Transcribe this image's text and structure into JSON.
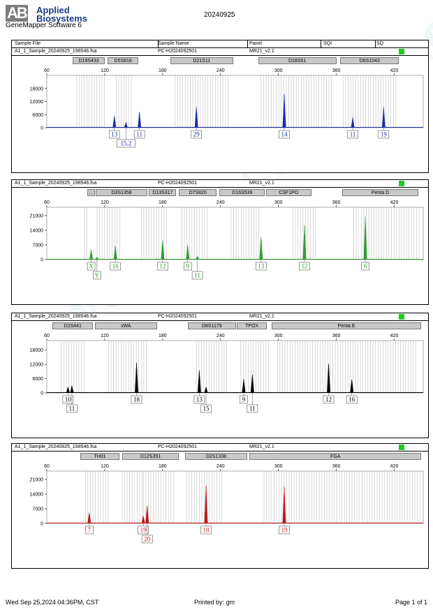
{
  "header": {
    "logo_line1": "Applied",
    "logo_line2": "Biosystems",
    "logo_mark": "AB",
    "app_name": "GeneMapper Software 6",
    "run_date": "20240925"
  },
  "columns": [
    "Sample File",
    "Sample Name",
    "Panel",
    "SQI",
    "SQ"
  ],
  "footer": {
    "printed_at": "Wed Sep 25,2024 04:36PM, CST",
    "printed_by": "Printed by: gm",
    "page": "Page 1 of 1"
  },
  "watermark": "www.procell.com.cn",
  "panels": [
    {
      "sample_file": "A1_1_Sample_20240925_198546.fsa",
      "sample_name": "PC-H2024092501",
      "panel": "MR21_v2.1",
      "sq_color": "#1fcc1f",
      "markers": [
        {
          "name": "D19S433",
          "start": 87,
          "end": 120
        },
        {
          "name": "D5S818",
          "start": 123,
          "end": 155
        },
        {
          "name": "D21S11",
          "start": 188,
          "end": 253
        },
        {
          "name": "D18S51",
          "start": 279,
          "end": 360
        },
        {
          "name": "D6S1043",
          "start": 364,
          "end": 425
        }
      ]
    },
    {
      "sample_file": "A1_1_Sample_20240925_198546.fsa",
      "sample_name": "PC-H2024092501",
      "panel": "MR21_v2.1",
      "sq_color": "#1fcc1f",
      "markers": [
        {
          "name": "...",
          "start": 102,
          "end": 110
        },
        {
          "name": "D3S1358",
          "start": 111,
          "end": 164
        },
        {
          "name": "D13S317",
          "start": 166,
          "end": 194
        },
        {
          "name": "D7S820",
          "start": 197,
          "end": 236
        },
        {
          "name": "D16S539",
          "start": 239,
          "end": 286
        },
        {
          "name": "CSF1PO",
          "start": 287,
          "end": 334
        },
        {
          "name": "Penta D",
          "start": 366,
          "end": 445
        }
      ]
    },
    {
      "sample_file": "A1_1_Sample_20240925_198546.fsa",
      "sample_name": "PC-H2024092501",
      "panel": "MR21_v2.1",
      "sq_color": "#1fcc1f",
      "markers": [
        {
          "name": "D2S441",
          "start": 66,
          "end": 108
        },
        {
          "name": "vWA",
          "start": 110,
          "end": 174
        },
        {
          "name": "D8S1179",
          "start": 206,
          "end": 256
        },
        {
          "name": "TPOX",
          "start": 257,
          "end": 288
        },
        {
          "name": "Penta E",
          "start": 293,
          "end": 448
        }
      ]
    },
    {
      "sample_file": "A1_1_Sample_20240925_198546.fsa",
      "sample_name": "PC-H2024092501",
      "panel": "MR21_v2.1",
      "sq_color": "#1fcc1f",
      "markers": [
        {
          "name": "TH01",
          "start": 95,
          "end": 135
        },
        {
          "name": "D12S391",
          "start": 138,
          "end": 197
        },
        {
          "name": "D2S1338",
          "start": 203,
          "end": 268
        },
        {
          "name": "FGA",
          "start": 270,
          "end": 448
        }
      ]
    }
  ],
  "chart_data": [
    {
      "type": "line",
      "dye_color": "#1b2ea8",
      "xlim": [
        60,
        450
      ],
      "xticks": [
        60,
        120,
        180,
        240,
        300,
        360,
        420
      ],
      "ylim": [
        0,
        24000
      ],
      "yticks": [
        0,
        6000,
        12000,
        18000
      ],
      "bins": [
        [
          91,
          121
        ],
        [
          132,
          150
        ],
        [
          193,
          250
        ],
        [
          282,
          355
        ],
        [
          367,
          424
        ]
      ],
      "peaks": [
        {
          "x": 130,
          "height": 5500
        },
        {
          "x": 142,
          "height": 2500
        },
        {
          "x": 156,
          "height": 7300
        },
        {
          "x": 215,
          "height": 9500
        },
        {
          "x": 306,
          "height": 15500
        },
        {
          "x": 377,
          "height": 4700
        },
        {
          "x": 409,
          "height": 9500
        }
      ],
      "calls": [
        {
          "label": "13",
          "x": 130,
          "row": 0
        },
        {
          "label": "15.2",
          "x": 142,
          "row": 1
        },
        {
          "label": "11",
          "x": 156,
          "row": 0
        },
        {
          "label": "29",
          "x": 215,
          "row": 0
        },
        {
          "label": "14",
          "x": 306,
          "row": 0
        },
        {
          "label": "11",
          "x": 377,
          "row": 0
        },
        {
          "label": "19",
          "x": 409,
          "row": 0
        }
      ]
    },
    {
      "type": "line",
      "dye_color": "#2e9e2e",
      "xlim": [
        60,
        450
      ],
      "xticks": [
        60,
        120,
        180,
        240,
        300,
        360,
        420
      ],
      "ylim": [
        0,
        25000
      ],
      "yticks": [
        0,
        7000,
        14000,
        21000
      ],
      "bins": [
        [
          99,
          103
        ],
        [
          112,
          138
        ],
        [
          158,
          186
        ],
        [
          200,
          228
        ],
        [
          251,
          282
        ],
        [
          315,
          341
        ],
        [
          378,
          448
        ]
      ],
      "peaks": [
        {
          "x": 106,
          "height": 4800
        },
        {
          "x": 112,
          "height": 1200
        },
        {
          "x": 131,
          "height": 6500
        },
        {
          "x": 180,
          "height": 9200
        },
        {
          "x": 206,
          "height": 6900
        },
        {
          "x": 216,
          "height": 1700
        },
        {
          "x": 282,
          "height": 11000
        },
        {
          "x": 327,
          "height": 16500
        },
        {
          "x": 390,
          "height": 20500
        }
      ],
      "calls": [
        {
          "label": "X",
          "x": 106,
          "row": 0
        },
        {
          "label": "Y",
          "x": 112,
          "row": 1
        },
        {
          "label": "16",
          "x": 131,
          "row": 0
        },
        {
          "label": "12",
          "x": 180,
          "row": 0
        },
        {
          "label": "9",
          "x": 206,
          "row": 0
        },
        {
          "label": "11",
          "x": 216,
          "row": 1
        },
        {
          "label": "13",
          "x": 282,
          "row": 0
        },
        {
          "label": "12",
          "x": 327,
          "row": 0
        },
        {
          "label": "6",
          "x": 390,
          "row": 0
        }
      ]
    },
    {
      "type": "line",
      "dye_color": "#000000",
      "xlim": [
        60,
        450
      ],
      "xticks": [
        60,
        120,
        180,
        240,
        300,
        360,
        420
      ],
      "ylim": [
        0,
        22000
      ],
      "yticks": [
        0,
        6000,
        12000,
        18000
      ],
      "bins": [
        [
          75,
          100
        ],
        [
          124,
          164
        ],
        [
          215,
          248
        ],
        [
          261,
          290
        ],
        [
          299,
          444
        ]
      ],
      "peaks": [
        {
          "x": 82,
          "height": 2500
        },
        {
          "x": 86,
          "height": 3000
        },
        {
          "x": 153,
          "height": 12700
        },
        {
          "x": 218,
          "height": 9500
        },
        {
          "x": 225,
          "height": 2500
        },
        {
          "x": 264,
          "height": 5800
        },
        {
          "x": 273,
          "height": 7700
        },
        {
          "x": 352,
          "height": 12200
        },
        {
          "x": 376,
          "height": 5700
        }
      ],
      "calls": [
        {
          "label": "10",
          "x": 82,
          "row": 0
        },
        {
          "label": "11",
          "x": 86,
          "row": 1
        },
        {
          "label": "18",
          "x": 153,
          "row": 0
        },
        {
          "label": "13",
          "x": 218,
          "row": 0
        },
        {
          "label": "15",
          "x": 225,
          "row": 1
        },
        {
          "label": "9",
          "x": 264,
          "row": 0
        },
        {
          "label": "11",
          "x": 273,
          "row": 1
        },
        {
          "label": "12",
          "x": 352,
          "row": 0
        },
        {
          "label": "16",
          "x": 376,
          "row": 0
        }
      ]
    },
    {
      "type": "line",
      "dye_color": "#c01818",
      "xlim": [
        60,
        450
      ],
      "xticks": [
        60,
        120,
        180,
        240,
        300,
        360,
        420
      ],
      "ylim": [
        0,
        25000
      ],
      "yticks": [
        0,
        7000,
        14000,
        21000
      ],
      "bins": [
        [
          100,
          125
        ],
        [
          138,
          160
        ],
        [
          160,
          192
        ],
        [
          205,
          242
        ],
        [
          285,
          447
        ]
      ],
      "peaks": [
        {
          "x": 104,
          "height": 5200
        },
        {
          "x": 160,
          "height": 3600
        },
        {
          "x": 164,
          "height": 8500
        },
        {
          "x": 225,
          "height": 18000
        },
        {
          "x": 306,
          "height": 17500
        }
      ],
      "calls": [
        {
          "label": "7",
          "x": 104,
          "row": 0
        },
        {
          "label": "19",
          "x": 160,
          "row": 0
        },
        {
          "label": "20",
          "x": 164,
          "row": 1
        },
        {
          "label": "18",
          "x": 225,
          "row": 0
        },
        {
          "label": "19",
          "x": 306,
          "row": 0
        }
      ]
    }
  ]
}
